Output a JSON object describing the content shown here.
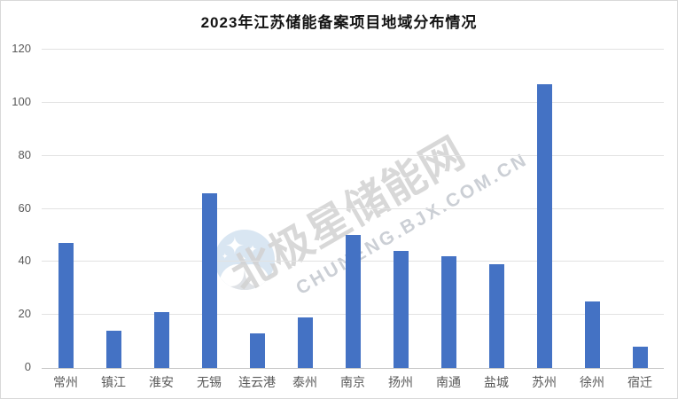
{
  "chart_data": {
    "type": "bar",
    "title": "2023年江苏储能备案项目地域分布情况",
    "categories": [
      "常州",
      "镇江",
      "淮安",
      "无锡",
      "连云港",
      "泰州",
      "南京",
      "扬州",
      "南通",
      "盐城",
      "苏州",
      "徐州",
      "宿迁"
    ],
    "values": [
      47,
      14,
      21,
      66,
      13,
      19,
      50,
      44,
      42,
      39,
      107,
      25,
      8
    ],
    "xlabel": "",
    "ylabel": "",
    "ylim": [
      0,
      120
    ],
    "ytick_step": 20,
    "yticks": [
      0,
      20,
      40,
      60,
      80,
      100,
      120
    ],
    "grid": true,
    "legend": "none",
    "bar_color": "#4472C4",
    "gridline_color": "#e2e2e2",
    "axis_line_color": "#c6c6c6",
    "tick_label_color": "#595959"
  },
  "watermark": {
    "cn_text": "北极星储能网",
    "en_text": "CHUNENG.BJX.COM.CN",
    "logo": "bjx-star-book-logo",
    "logo_bg_color": "#d9e6f2"
  }
}
